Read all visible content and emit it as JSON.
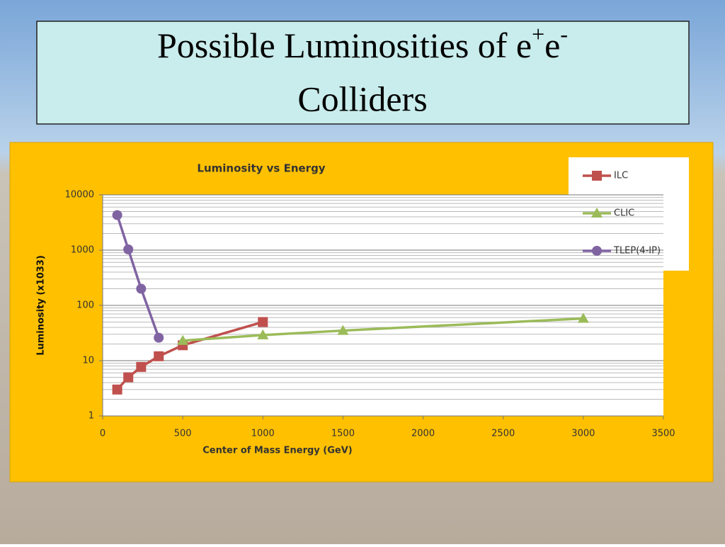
{
  "slide_title": [
    "Possible Luminosities of e",
    "+",
    "e",
    "-",
    "Colliders"
  ],
  "chart_data": {
    "type": "line",
    "title": "Luminosity vs Energy",
    "xlabel": "Center of Mass Energy (GeV)",
    "ylabel": "Luminosity (x1033)",
    "xlim": [
      0,
      3500
    ],
    "xticks": [
      0,
      500,
      1000,
      1500,
      2000,
      2500,
      3000,
      3500
    ],
    "ylim": [
      1,
      10000
    ],
    "yticks": [
      1,
      10,
      100,
      1000,
      10000
    ],
    "ylog": true,
    "grid": true,
    "minor_grid": true,
    "legend": "top-right",
    "series": [
      {
        "name": "ILC",
        "color": "#c0504d",
        "marker": "square",
        "x": [
          91,
          160,
          240,
          350,
          500,
          1000
        ],
        "values": [
          3,
          5,
          7.7,
          12,
          19,
          50
        ]
      },
      {
        "name": "CLIC",
        "color": "#9bbb59",
        "marker": "triangle",
        "x": [
          500,
          1000,
          1500,
          3000
        ],
        "values": [
          23,
          29,
          35,
          58
        ]
      },
      {
        "name": "TLEP(4-IP)",
        "color": "#8064a2",
        "marker": "circle",
        "x": [
          91,
          160,
          240,
          350
        ],
        "values": [
          4300,
          1030,
          200,
          26
        ]
      }
    ]
  }
}
